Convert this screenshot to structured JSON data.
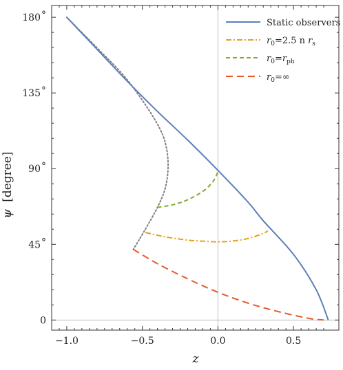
{
  "chart_data": {
    "type": "line",
    "xlabel": "z",
    "ylabel_main": "ψ",
    "ylabel_unit": "[degree]",
    "xlim": [
      -1.1,
      0.8
    ],
    "ylim": [
      -6,
      187
    ],
    "x_ticks": [
      {
        "value": -1.0,
        "label": "−1.0"
      },
      {
        "value": -0.5,
        "label": "−0.5"
      },
      {
        "value": 0.0,
        "label": "0.0"
      },
      {
        "value": 0.5,
        "label": "0.5"
      }
    ],
    "y_ticks": [
      {
        "value": 0,
        "label": "0",
        "unit": ""
      },
      {
        "value": 45,
        "label": "45",
        "unit": "°"
      },
      {
        "value": 90,
        "label": "90",
        "unit": "°"
      },
      {
        "value": 135,
        "label": "135",
        "unit": "°"
      },
      {
        "value": 180,
        "label": "180",
        "unit": "°"
      }
    ],
    "legend_position": "top-right",
    "series": [
      {
        "name": "Static observers",
        "color": "#5b7fb8",
        "style": "solid",
        "x": [
          -1.0,
          -0.8,
          -0.6,
          -0.4,
          -0.2,
          0.0,
          0.2,
          0.3,
          0.5,
          0.65,
          0.73
        ],
        "y": [
          180,
          161,
          142,
          124,
          107,
          89,
          70,
          59,
          39,
          18,
          0
        ]
      },
      {
        "name": "r0=2.5 n rs",
        "color": "#e3a21a",
        "style": "dashdot",
        "x": [
          -0.48,
          -0.35,
          -0.2,
          -0.08,
          0.0,
          0.1,
          0.2,
          0.3,
          0.33
        ],
        "y": [
          52,
          49.5,
          47.5,
          46.8,
          46.5,
          47,
          48.5,
          51.5,
          53
        ]
      },
      {
        "name": "r0=rph",
        "color": "#7fae2d",
        "style": "dashed",
        "x": [
          -0.4,
          -0.3,
          -0.2,
          -0.1,
          -0.04,
          -0.01,
          0.0
        ],
        "y": [
          67,
          68.5,
          71.5,
          76.5,
          81.5,
          86,
          89
        ]
      },
      {
        "name": "r0=∞",
        "color": "#e55a2b",
        "style": "longdash",
        "x": [
          -0.56,
          -0.4,
          -0.2,
          0.0,
          0.2,
          0.4,
          0.6,
          0.7
        ],
        "y": [
          42,
          33.5,
          24.5,
          16.5,
          10,
          5,
          1,
          0
        ]
      },
      {
        "color": "#808080",
        "style": "dotted",
        "x": [
          -1.0,
          -0.78,
          -0.62,
          -0.48,
          -0.38,
          -0.34,
          -0.33,
          -0.35,
          -0.4,
          -0.48,
          -0.56
        ],
        "y": [
          180,
          160,
          145,
          128,
          113,
          102,
          90,
          78,
          67,
          54,
          42
        ]
      }
    ]
  },
  "legend": {
    "static": "Static observers",
    "r25_prefix": "r",
    "r25_sub": "0",
    "r25_middle": "=2.5 n ",
    "r25_r": "r",
    "r25_s": "s",
    "rph_prefix": "r",
    "rph_sub": "0",
    "rph_eq": "=",
    "rph_r": "r",
    "rph_ph": "ph",
    "rinf_prefix": "r",
    "rinf_sub": "0",
    "rinf_rest": "=∞"
  }
}
